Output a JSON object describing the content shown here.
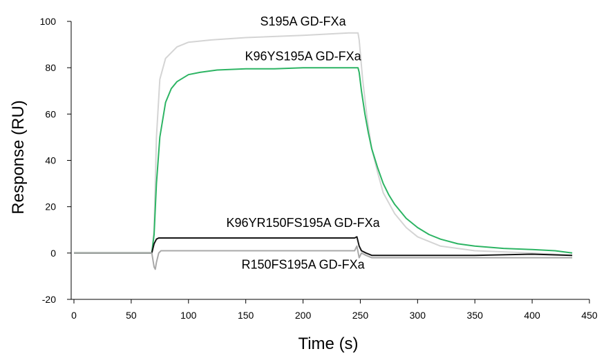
{
  "chart_data": {
    "type": "line",
    "xlabel": "Time (s)",
    "ylabel": "Response (RU)",
    "xlim": [
      0,
      450
    ],
    "ylim": [
      -20,
      100
    ],
    "xticks": [
      "0",
      "50",
      "100",
      "150",
      "200",
      "250",
      "300",
      "350",
      "400",
      "450"
    ],
    "yticks": [
      "100",
      "80",
      "60",
      "40",
      "20",
      "0",
      "-20"
    ],
    "grid": false,
    "legend": "none",
    "series": [
      {
        "name": "S195A GD-FXa",
        "color": "#d4d4d4",
        "label_pos": [
          200,
          100
        ],
        "x": [
          0,
          20,
          40,
          60,
          68,
          70,
          72,
          75,
          80,
          90,
          100,
          120,
          150,
          200,
          240,
          248,
          249,
          252,
          256,
          260,
          265,
          270,
          280,
          290,
          300,
          320,
          350,
          400,
          435
        ],
        "y": [
          0,
          0,
          0,
          0,
          0,
          10,
          50,
          75,
          84,
          89,
          91,
          92,
          93,
          94,
          95,
          95,
          92,
          75,
          58,
          45,
          35,
          26,
          17,
          11,
          7,
          3,
          1,
          0,
          -1
        ]
      },
      {
        "name": "K96YS195A GD-FXa",
        "color": "#2cb463",
        "label_pos": [
          200,
          85
        ],
        "x": [
          0,
          20,
          40,
          60,
          68,
          70,
          72,
          75,
          80,
          85,
          90,
          100,
          110,
          125,
          150,
          175,
          200,
          225,
          248,
          249,
          251,
          254,
          257,
          260,
          265,
          270,
          275,
          280,
          290,
          300,
          310,
          320,
          335,
          350,
          375,
          400,
          420,
          435
        ],
        "y": [
          0,
          0,
          0,
          0,
          0,
          8,
          30,
          50,
          65,
          71,
          74,
          77,
          78,
          79,
          79.5,
          79.5,
          80,
          80,
          80,
          78,
          70,
          60,
          52,
          45,
          37,
          30,
          25,
          21,
          15,
          11,
          8,
          6,
          4,
          3,
          2,
          1.5,
          1,
          0
        ]
      },
      {
        "name": "K96YR150FS195A GD-FXa",
        "color": "#141414",
        "label_pos": [
          200,
          13
        ],
        "x": [
          0,
          20,
          40,
          60,
          68,
          70,
          72,
          74,
          76,
          80,
          100,
          150,
          200,
          245,
          247,
          249,
          251,
          255,
          260,
          270,
          300,
          350,
          400,
          435
        ],
        "y": [
          0,
          0,
          0,
          0,
          0,
          4,
          6,
          6.5,
          6.5,
          6.5,
          6.5,
          6.5,
          6.5,
          6.5,
          7,
          3,
          1,
          0,
          -1,
          -1,
          -1,
          -1,
          -0.5,
          -1
        ]
      },
      {
        "name": "R150FS195A GD-FXa",
        "color": "#a8a8a8",
        "label_pos": [
          200,
          -5
        ],
        "x": [
          0,
          20,
          40,
          60,
          68,
          70,
          71,
          72,
          74,
          76,
          80,
          100,
          150,
          200,
          245,
          247,
          249,
          251,
          255,
          260,
          270,
          300,
          350,
          400,
          435
        ],
        "y": [
          0,
          0,
          0,
          0,
          0,
          -6,
          -7,
          -4,
          0,
          1,
          1,
          1,
          1,
          1,
          1,
          3,
          -2,
          0,
          -1,
          -2,
          -2,
          -2,
          -2,
          -2,
          -2
        ]
      }
    ]
  }
}
